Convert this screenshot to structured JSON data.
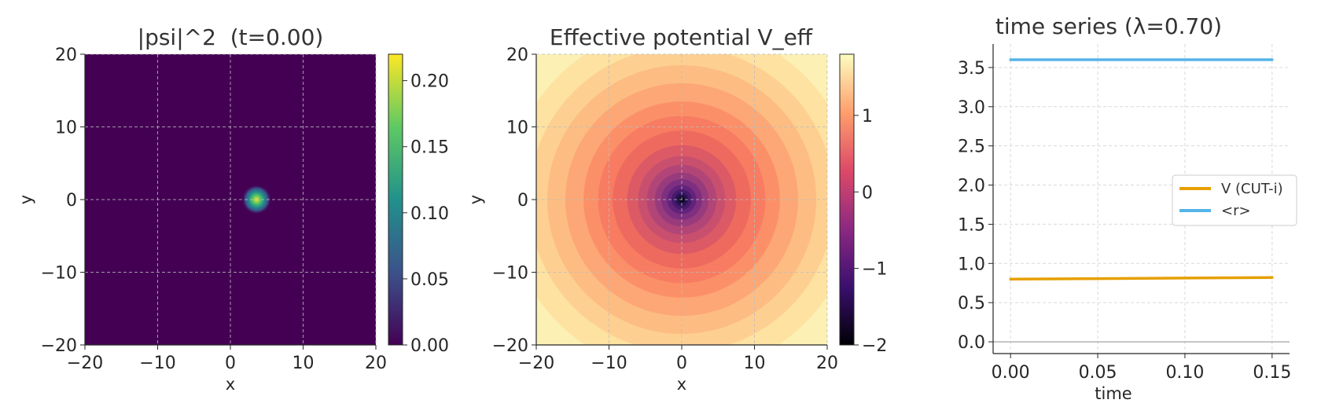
{
  "chart_data": [
    {
      "type": "heatmap",
      "title": "|psi|^2  (t=0.00)",
      "xlabel": "x",
      "ylabel": "y",
      "xlim": [
        -20,
        20
      ],
      "ylim": [
        -20,
        20
      ],
      "xticks": [
        "−20",
        "−10",
        "0",
        "10",
        "20"
      ],
      "yticks": [
        "−20",
        "−10",
        "0",
        "10",
        "20"
      ],
      "grid": true,
      "colormap": "viridis",
      "colorbar": {
        "min": 0.0,
        "max": 0.22,
        "ticks": [
          "0.00",
          "0.05",
          "0.10",
          "0.15",
          "0.20"
        ]
      },
      "peak": {
        "x": 3.6,
        "y": 0.0,
        "value": 0.22
      }
    },
    {
      "type": "heatmap",
      "title": "Effective potential V_eff",
      "xlabel": "x",
      "ylabel": "y",
      "xlim": [
        -20,
        20
      ],
      "ylim": [
        -20,
        20
      ],
      "xticks": [
        "−20",
        "−10",
        "0",
        "10",
        "20"
      ],
      "yticks": [
        "−20",
        "−10",
        "0",
        "10",
        "20"
      ],
      "grid": true,
      "colormap": "magma",
      "colorbar": {
        "min": -2,
        "max": 1.8,
        "ticks": [
          "−2",
          "−1",
          "0",
          "1"
        ]
      }
    },
    {
      "type": "line",
      "title": "time series (λ=0.70)",
      "xlabel": "time",
      "ylabel": "",
      "xlim": [
        -0.01,
        0.16
      ],
      "ylim": [
        -0.15,
        3.8
      ],
      "xticks": [
        "0.00",
        "0.05",
        "0.10",
        "0.15"
      ],
      "yticks": [
        "0.0",
        "0.5",
        "1.0",
        "1.5",
        "2.0",
        "2.5",
        "3.0",
        "3.5"
      ],
      "grid": true,
      "legend_position": "center-right",
      "series": [
        {
          "name": "V (CUT-i)",
          "color": "#e69f00",
          "x": [
            0.0,
            0.15
          ],
          "y": [
            0.8,
            0.82
          ]
        },
        {
          "name": "<r>",
          "color": "#56b4e9",
          "x": [
            0.0,
            0.15
          ],
          "y": [
            3.6,
            3.6
          ]
        }
      ]
    }
  ]
}
